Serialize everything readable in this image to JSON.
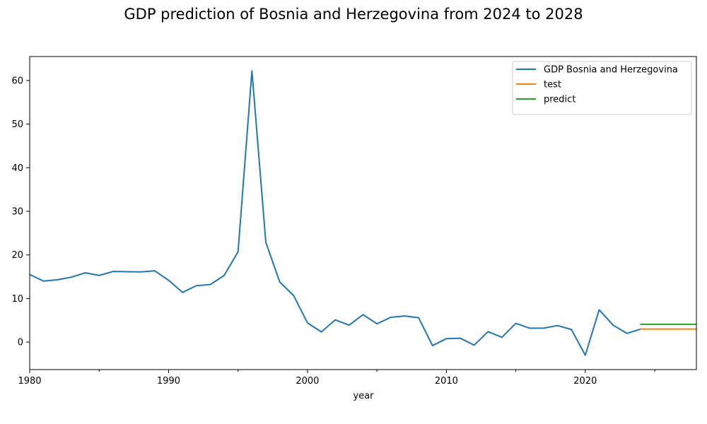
{
  "chart_data": {
    "type": "line",
    "title": "GDP prediction of Bosnia and Herzegovina from 2024 to 2028",
    "xlabel": "year",
    "ylabel": "",
    "xlim": [
      1980,
      2028
    ],
    "ylim": [
      -6.3,
      65.5
    ],
    "x_ticks": [
      1980,
      1990,
      2000,
      2010,
      2020
    ],
    "x_minor_ticks": [
      1985,
      1995,
      2005,
      2015,
      2025
    ],
    "y_ticks": [
      0,
      10,
      20,
      30,
      40,
      50,
      60
    ],
    "legend_position": "top-right",
    "grid": false,
    "series": [
      {
        "name": "GDP Bosnia and Herzegovina",
        "color": "#1f77b4",
        "x": [
          1980,
          1981,
          1982,
          1983,
          1984,
          1985,
          1986,
          1987,
          1988,
          1989,
          1990,
          1991,
          1992,
          1993,
          1994,
          1995,
          1996,
          1997,
          1998,
          1999,
          2000,
          2001,
          2002,
          2003,
          2004,
          2005,
          2006,
          2007,
          2008,
          2009,
          2010,
          2011,
          2012,
          2013,
          2014,
          2015,
          2016,
          2017,
          2018,
          2019,
          2020,
          2021,
          2022,
          2023,
          2024
        ],
        "values": [
          15.5,
          14.0,
          14.3,
          14.9,
          15.9,
          15.3,
          16.2,
          16.15,
          16.1,
          16.35,
          14.2,
          11.4,
          12.95,
          13.2,
          15.3,
          20.7,
          62.2,
          22.9,
          13.8,
          10.7,
          4.4,
          2.35,
          5.1,
          3.9,
          6.3,
          4.2,
          5.7,
          6.0,
          5.6,
          -0.8,
          0.8,
          0.9,
          -0.7,
          2.4,
          1.1,
          4.3,
          3.2,
          3.2,
          3.8,
          2.9,
          -3.0,
          7.4,
          3.9,
          2.0,
          3.0
        ]
      },
      {
        "name": "test",
        "color": "#ff7f0e",
        "x": [
          2024,
          2025,
          2026,
          2027,
          2028
        ],
        "values": [
          3.0,
          3.0,
          3.0,
          3.0,
          3.0
        ]
      },
      {
        "name": "predict",
        "color": "#2ca02c",
        "x": [
          2024,
          2025,
          2026,
          2027,
          2028
        ],
        "values": [
          4.1,
          4.1,
          4.1,
          4.1,
          4.1
        ]
      }
    ]
  }
}
